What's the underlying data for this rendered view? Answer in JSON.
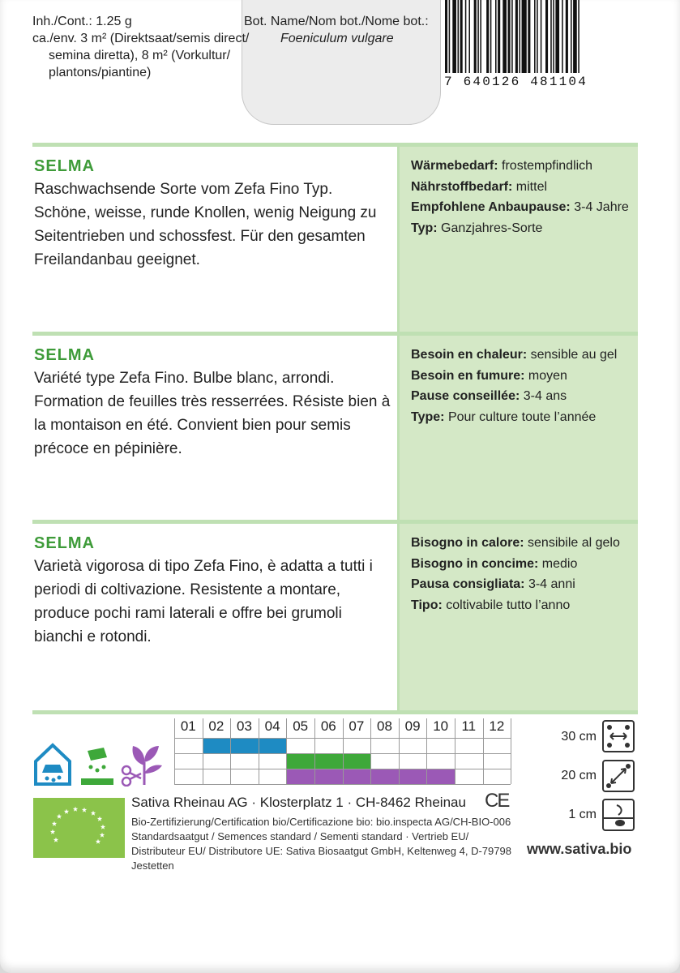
{
  "header": {
    "content_lines": [
      "Inh./Cont.: 1.25 g",
      "ca./env. 3 m² (Direktsaat/semis direct/",
      "semina diretta), 8 m² (Vorkultur/",
      "plantons/piantine)"
    ],
    "bot_label": "Bot. Name/Nom bot./Nome bot.:",
    "bot_name": "Foeniculum vulgare",
    "barcode_number": "7 640126 481104"
  },
  "sections": [
    {
      "variety": "SELMA",
      "description": "Raschwachsende Sorte vom Zefa Fino Typ. Schöne, weisse, runde Knollen, wenig Neigung zu Seitentrieben und schossfest. Für den gesamten Freilandanbau geeignet.",
      "traits": [
        {
          "label": "Wärmebedarf:",
          "value": "frostempfindlich"
        },
        {
          "label": "Nährstoffbedarf:",
          "value": "mittel"
        },
        {
          "label": "Empfohlene Anbaupause:",
          "value": "3-4 Jahre"
        },
        {
          "label": "Typ:",
          "value": "Ganzjahres-Sorte"
        }
      ]
    },
    {
      "variety": "SELMA",
      "description": "Variété type Zefa Fino. Bulbe blanc, arrondi. Formation de feuilles très resserrées. Résiste bien à la montaison en été. Convient bien pour semis précoce en pépinière.",
      "traits": [
        {
          "label": "Besoin en chaleur:",
          "value": "sensible au gel"
        },
        {
          "label": "Besoin en fumure:",
          "value": "moyen"
        },
        {
          "label": "Pause conseillée:",
          "value": "3-4 ans"
        },
        {
          "label": "Type:",
          "value": "Pour culture toute l’année"
        }
      ]
    },
    {
      "variety": "SELMA",
      "description": "Varietà vigorosa di tipo Zefa Fino, è adatta a tutti i periodi di coltivazione. Resistente a montare, produce pochi rami laterali e offre bei grumoli bianchi e rotondi.",
      "traits": [
        {
          "label": "Bisogno in calore:",
          "value": "sensibile al gelo"
        },
        {
          "label": "Bisogno in concime:",
          "value": "medio"
        },
        {
          "label": "Pausa consigliata:",
          "value": "3-4 anni"
        },
        {
          "label": "Tipo:",
          "value": "coltivabile tutto l’anno"
        }
      ]
    }
  ],
  "calendar": {
    "months": [
      "01",
      "02",
      "03",
      "04",
      "05",
      "06",
      "07",
      "08",
      "09",
      "10",
      "11",
      "12"
    ],
    "rows": [
      {
        "icon": "indoor-sowing-icon",
        "color": "#1e8bc3",
        "start_month": 2,
        "end_month": 4
      },
      {
        "icon": "direct-sowing-icon",
        "color": "#3ea83a",
        "start_month": 5,
        "end_month": 7
      },
      {
        "icon": "harvest-icon",
        "color": "#9b59b6",
        "start_month": 5,
        "end_month": 10
      }
    ]
  },
  "spacing": [
    {
      "label": "30 cm",
      "icon": "row-spacing-icon"
    },
    {
      "label": "20 cm",
      "icon": "plant-spacing-icon"
    },
    {
      "label": "1 cm",
      "icon": "sowing-depth-icon"
    }
  ],
  "footer": {
    "company": "Sativa Rheinau AG · Klosterplatz 1 · CH-8462 Rheinau",
    "ce_mark": "CE",
    "small_lines": [
      "Bio-Zertifizierung/Certification bio/Certificazione bio: bio.inspecta AG/CH-BIO-006",
      "Standardsaatgut / Semences standard / Sementi standard · Vertrieb EU/ Distributeur EU/ Distributore UE: Sativa Biosaatgut GmbH, Keltenweg 4, D-79798 Jestetten"
    ],
    "website": "www.sativa.bio"
  }
}
